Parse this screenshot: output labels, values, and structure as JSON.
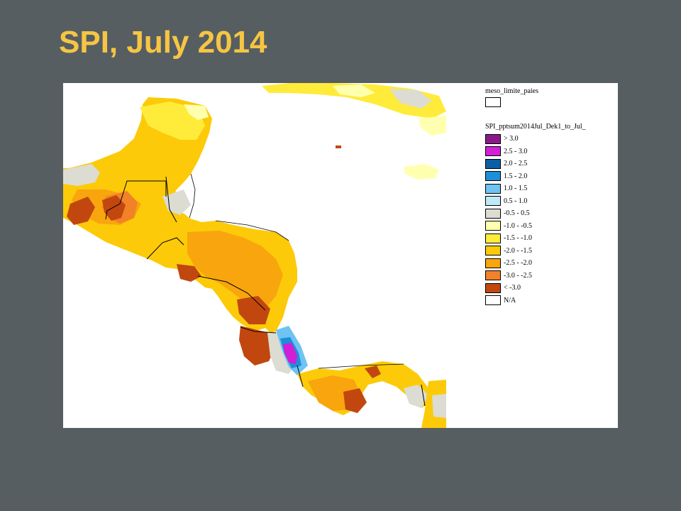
{
  "slide": {
    "title": "SPI, July 2014"
  },
  "map": {
    "boundary_layer": {
      "name": "meso_limite_paies",
      "color": "#ffffff"
    },
    "spi_layer": {
      "name": "SPI_pptsum2014Jul_Dek1_to_Jul_"
    },
    "legend_classes": [
      {
        "label": "> 3.0",
        "color": "#8b1a89"
      },
      {
        "label": "2.5 - 3.0",
        "color": "#d21ed6"
      },
      {
        "label": "2.0 - 2.5",
        "color": "#0b5fa5"
      },
      {
        "label": "1.5 - 2.0",
        "color": "#1c8fd8"
      },
      {
        "label": "1.0 - 1.5",
        "color": "#6fc3f2"
      },
      {
        "label": "0.5 - 1.0",
        "color": "#bfe8f8"
      },
      {
        "label": "-0.5  - 0.5",
        "color": "#dcdcd2"
      },
      {
        "label": "-1.0 - -0.5",
        "color": "#ffffb0"
      },
      {
        "label": "-1.5 - -1.0",
        "color": "#ffeb3a"
      },
      {
        "label": "-2.0 - -1.5",
        "color": "#fcca08"
      },
      {
        "label": "-2.5 - -2.0",
        "color": "#f8a50e"
      },
      {
        "label": "-3.0 - -2.5",
        "color": "#f28228"
      },
      {
        "label": "< -3.0",
        "color": "#c1470f"
      },
      {
        "label": "N/A",
        "color": "#ffffff"
      }
    ]
  }
}
